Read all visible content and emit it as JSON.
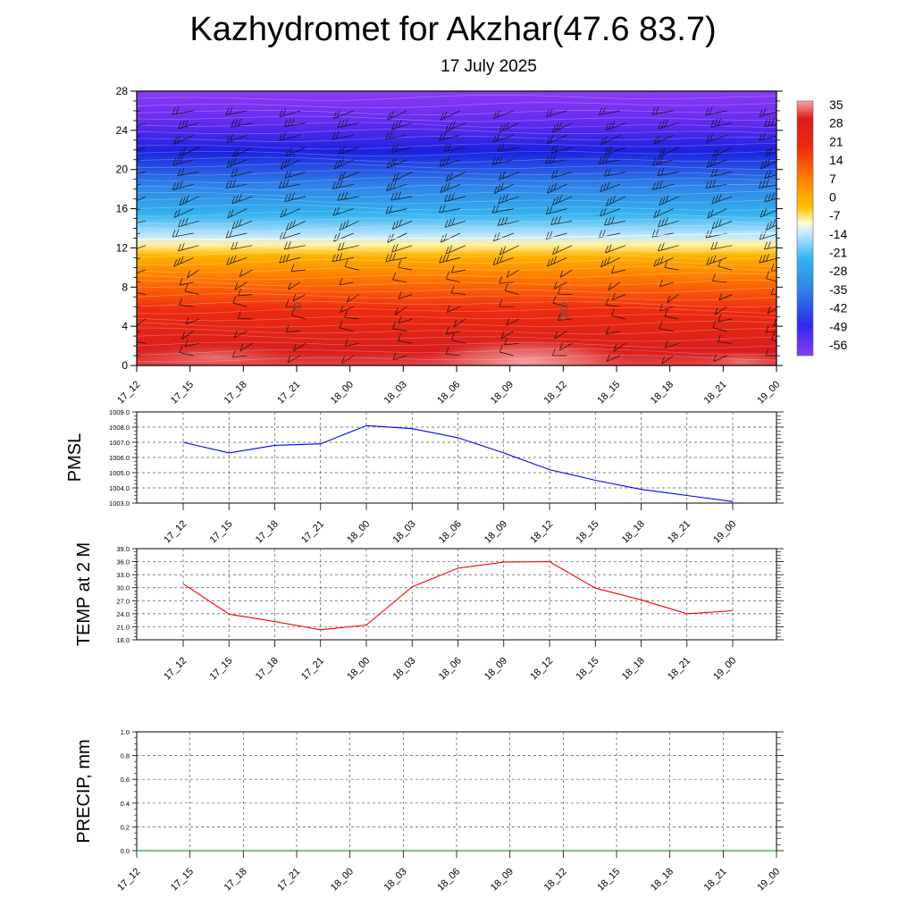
{
  "title": "Kazhydromet for Akzhar(47.6 83.7)",
  "subtitle": "17 July 2025",
  "chart_data": [
    {
      "type": "heatmap",
      "name": "cross-section",
      "x_categories": [
        "17_12",
        "17_15",
        "17_18",
        "17_21",
        "18_00",
        "18_03",
        "18_06",
        "18_09",
        "18_12",
        "18_15",
        "18_18",
        "18_21",
        "19_00"
      ],
      "yticks": [
        0,
        4,
        8,
        12,
        16,
        20,
        24,
        28
      ],
      "ylim": [
        0,
        28
      ],
      "colorbar_labels": [
        35,
        28,
        21,
        14,
        7,
        0,
        -7,
        -14,
        -21,
        -28,
        -35,
        -42,
        -49,
        -56
      ],
      "freezing_level": [
        12.9,
        12.9,
        12.9,
        12.9,
        12.9,
        13.0,
        13.0,
        13.0,
        13.1,
        13.2,
        13.3,
        13.4,
        13.5
      ]
    },
    {
      "type": "line",
      "name": "pmsl",
      "ylabel": "PMSL",
      "x": [
        "17_12",
        "17_15",
        "17_18",
        "17_21",
        "18_00",
        "18_03",
        "18_06",
        "18_09",
        "18_12",
        "18_15",
        "18_18",
        "18_21",
        "19_00"
      ],
      "y": [
        1007.0,
        1006.3,
        1006.8,
        1006.9,
        1008.1,
        1007.9,
        1007.3,
        1006.3,
        1005.2,
        1004.5,
        1003.9,
        1003.5,
        1003.1
      ],
      "ylim": [
        1003.0,
        1009.0
      ],
      "yticks": [
        "1003.0",
        "1004.0",
        "1005.0",
        "1006.0",
        "1007.0",
        "1008.0",
        "1009.0"
      ],
      "color": "#0000ff",
      "grid": true
    },
    {
      "type": "line",
      "name": "temp",
      "ylabel": "TEMP at 2 M",
      "x": [
        "17_12",
        "17_15",
        "17_18",
        "17_21",
        "18_00",
        "18_03",
        "18_06",
        "18_09",
        "18_12",
        "18_15",
        "18_18",
        "18_21",
        "19_00"
      ],
      "y": [
        30.9,
        23.9,
        22.2,
        20.3,
        21.4,
        30.2,
        34.5,
        35.9,
        36.0,
        29.9,
        27.2,
        24.0,
        24.7
      ],
      "ylim": [
        18.0,
        39.0
      ],
      "yticks": [
        "18.0",
        "21.0",
        "24.0",
        "27.0",
        "30.0",
        "33.0",
        "36.0",
        "39.0"
      ],
      "color": "#ff0000",
      "grid": true
    },
    {
      "type": "line",
      "name": "precip",
      "ylabel": "PRECIP, mm",
      "x": [
        "17_12",
        "17_15",
        "17_18",
        "17_21",
        "18_00",
        "18_03",
        "18_06",
        "18_09",
        "18_12",
        "18_15",
        "18_18",
        "18_21",
        "19_00"
      ],
      "y": [
        0,
        0,
        0,
        0,
        0,
        0,
        0,
        0,
        0,
        0,
        0,
        0,
        0
      ],
      "ylim": [
        0.0,
        1.0
      ],
      "yticks": [
        "0.0",
        "0.2",
        "0.4",
        "0.6",
        "0.8",
        "1.0"
      ],
      "color": "#008000",
      "grid": true
    }
  ]
}
